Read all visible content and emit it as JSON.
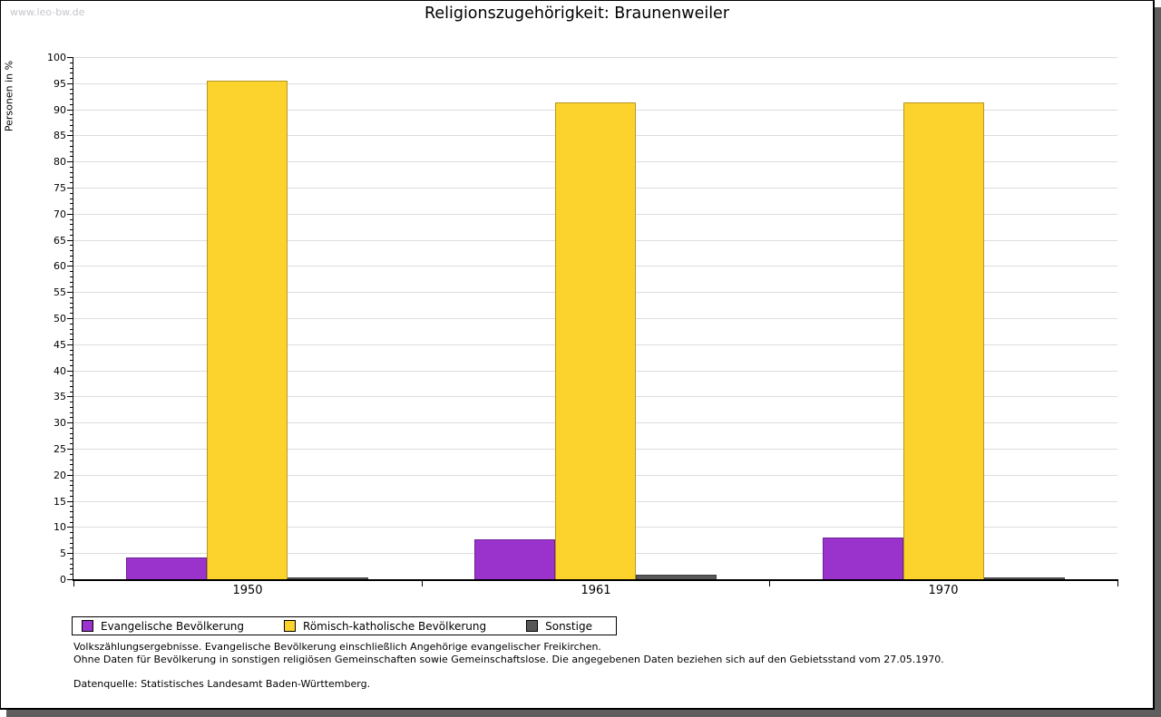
{
  "watermark": "www.leo-bw.de",
  "chart_data": {
    "type": "bar",
    "title": "Religionszugehörigkeit: Braunenweiler",
    "ylabel": "Personen in %",
    "xlabel": "",
    "ylim": [
      0,
      100
    ],
    "ytick_step": 5,
    "minor_tick_step": 1,
    "grid": true,
    "legend_position": "bottom-left",
    "categories": [
      "1950",
      "1961",
      "1970"
    ],
    "series": [
      {
        "name": "Evangelische Bevölkerung",
        "color": "#9933cc",
        "values": [
          4.1,
          7.6,
          8.0
        ]
      },
      {
        "name": "Römisch-katholische Bevölkerung",
        "color": "#fcd22d",
        "values": [
          95.5,
          91.3,
          91.4
        ]
      },
      {
        "name": "Sonstige",
        "color": "#58585a",
        "values": [
          0.3,
          0.9,
          0.3
        ]
      }
    ]
  },
  "footnotes": {
    "line1": "Volkszählungsergebnisse. Evangelische Bevölkerung einschließlich Angehörige evangelischer Freikirchen.",
    "line2": "Ohne Daten für Bevölkerung in sonstigen religiösen Gemeinschaften sowie Gemeinschaftslose. Die angegebenen Daten beziehen sich auf den Gebietsstand vom 27.05.1970.",
    "source": "Datenquelle: Statistisches Landesamt Baden-Württemberg."
  }
}
